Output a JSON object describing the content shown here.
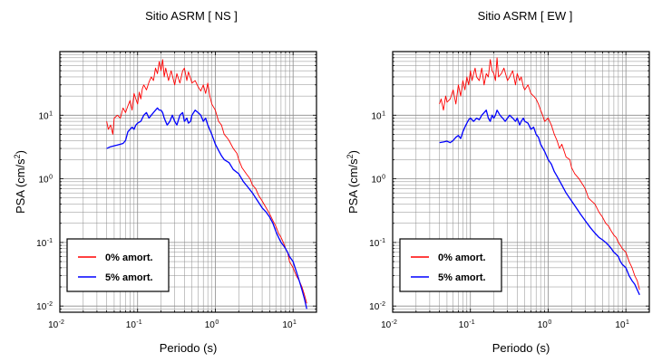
{
  "chart_data": [
    {
      "type": "line",
      "title": "Sitio ASRM [ NS ]",
      "xlabel": "Periodo (s)",
      "ylabel_main": "PSA (cm/s",
      "ylabel_sup": "2",
      "ylabel_close": ")",
      "xscale": "log",
      "yscale": "log",
      "xlim": [
        0.01,
        20
      ],
      "ylim": [
        0.008,
        100
      ],
      "grid": true,
      "legend": "bottom-left",
      "xticks": [
        {
          "base": "10",
          "exp": "-2"
        },
        {
          "base": "10",
          "exp": "-1"
        },
        {
          "base": "10",
          "exp": "0"
        },
        {
          "base": "10",
          "exp": "1"
        }
      ],
      "yticks": [
        {
          "base": "10",
          "exp": "-2"
        },
        {
          "base": "10",
          "exp": "-1"
        },
        {
          "base": "10",
          "exp": "0"
        },
        {
          "base": "10",
          "exp": "1"
        }
      ],
      "series": [
        {
          "name": "0% amort.",
          "color": "#ff0000",
          "x": [
            0.04,
            0.042,
            0.045,
            0.048,
            0.05,
            0.055,
            0.06,
            0.065,
            0.07,
            0.075,
            0.08,
            0.085,
            0.09,
            0.095,
            0.1,
            0.105,
            0.11,
            0.115,
            0.12,
            0.13,
            0.14,
            0.15,
            0.16,
            0.17,
            0.18,
            0.19,
            0.2,
            0.21,
            0.22,
            0.23,
            0.25,
            0.27,
            0.3,
            0.32,
            0.35,
            0.38,
            0.4,
            0.43,
            0.45,
            0.48,
            0.5,
            0.55,
            0.6,
            0.65,
            0.7,
            0.75,
            0.8,
            0.85,
            0.9,
            1,
            1.1,
            1.2,
            1.3,
            1.4,
            1.5,
            1.7,
            1.9,
            2,
            2.2,
            2.5,
            2.8,
            3,
            3.3,
            3.6,
            4,
            4.5,
            5,
            5.5,
            6,
            6.5,
            7,
            7.5,
            8,
            8.5,
            9,
            10,
            11,
            12,
            13,
            14,
            15
          ],
          "y": [
            8,
            6,
            7,
            5,
            9,
            10,
            9,
            13,
            11,
            14,
            17,
            12,
            22,
            18,
            15,
            23,
            18,
            26,
            30,
            25,
            33,
            40,
            35,
            55,
            45,
            70,
            50,
            75,
            40,
            55,
            35,
            50,
            30,
            45,
            32,
            50,
            55,
            35,
            48,
            38,
            32,
            35,
            28,
            24,
            30,
            22,
            32,
            20,
            15,
            12,
            8,
            7,
            5,
            4.5,
            4,
            3,
            2.5,
            2,
            1.5,
            1.2,
            1,
            0.8,
            0.7,
            0.55,
            0.45,
            0.35,
            0.28,
            0.22,
            0.18,
            0.14,
            0.12,
            0.1,
            0.08,
            0.07,
            0.05,
            0.04,
            0.03,
            0.025,
            0.02,
            0.015,
            0.011
          ]
        },
        {
          "name": "5% amort.",
          "color": "#0000ff",
          "x": [
            0.04,
            0.045,
            0.05,
            0.055,
            0.06,
            0.065,
            0.07,
            0.075,
            0.08,
            0.085,
            0.09,
            0.095,
            0.1,
            0.11,
            0.12,
            0.13,
            0.14,
            0.15,
            0.16,
            0.17,
            0.18,
            0.19,
            0.2,
            0.21,
            0.22,
            0.24,
            0.26,
            0.28,
            0.3,
            0.32,
            0.35,
            0.38,
            0.4,
            0.43,
            0.45,
            0.48,
            0.5,
            0.55,
            0.6,
            0.65,
            0.7,
            0.75,
            0.8,
            0.9,
            1,
            1.1,
            1.2,
            1.3,
            1.5,
            1.7,
            2,
            2.3,
            2.6,
            3,
            3.5,
            4,
            4.5,
            5,
            5.5,
            6,
            6.5,
            7,
            7.5,
            8,
            8.5,
            9,
            10,
            11,
            12,
            13,
            14,
            15
          ],
          "y": [
            3,
            3.2,
            3.3,
            3.4,
            3.5,
            3.6,
            4,
            5.5,
            6,
            6.5,
            6,
            7,
            7.5,
            8,
            10,
            11,
            9,
            10,
            11,
            12,
            13,
            12,
            12,
            11,
            9,
            7,
            8,
            10,
            8,
            7,
            10,
            11,
            8,
            9,
            7.5,
            8,
            10,
            12,
            11,
            10,
            8,
            9,
            7,
            5,
            3.5,
            2.8,
            2.3,
            2,
            1.8,
            1.4,
            1.2,
            0.9,
            0.75,
            0.6,
            0.45,
            0.35,
            0.3,
            0.25,
            0.2,
            0.15,
            0.12,
            0.1,
            0.09,
            0.08,
            0.07,
            0.06,
            0.05,
            0.035,
            0.025,
            0.018,
            0.013,
            0.009
          ]
        }
      ]
    },
    {
      "type": "line",
      "title": "Sitio ASRM [ EW ]",
      "xlabel": "Periodo (s)",
      "ylabel_main": "PSA (cm/s",
      "ylabel_sup": "2",
      "ylabel_close": ")",
      "xscale": "log",
      "yscale": "log",
      "xlim": [
        0.01,
        20
      ],
      "ylim": [
        0.008,
        100
      ],
      "grid": true,
      "legend": "bottom-left",
      "xticks": [
        {
          "base": "10",
          "exp": "-2"
        },
        {
          "base": "10",
          "exp": "-1"
        },
        {
          "base": "10",
          "exp": "0"
        },
        {
          "base": "10",
          "exp": "1"
        }
      ],
      "yticks": [
        {
          "base": "10",
          "exp": "-2"
        },
        {
          "base": "10",
          "exp": "-1"
        },
        {
          "base": "10",
          "exp": "0"
        },
        {
          "base": "10",
          "exp": "1"
        }
      ],
      "series": [
        {
          "name": "0% amort.",
          "color": "#ff0000",
          "x": [
            0.04,
            0.042,
            0.045,
            0.048,
            0.05,
            0.055,
            0.06,
            0.065,
            0.07,
            0.075,
            0.08,
            0.085,
            0.09,
            0.095,
            0.1,
            0.105,
            0.11,
            0.115,
            0.12,
            0.13,
            0.14,
            0.15,
            0.16,
            0.17,
            0.18,
            0.19,
            0.2,
            0.21,
            0.22,
            0.23,
            0.25,
            0.27,
            0.3,
            0.32,
            0.35,
            0.38,
            0.4,
            0.43,
            0.45,
            0.48,
            0.5,
            0.55,
            0.6,
            0.65,
            0.7,
            0.75,
            0.8,
            0.85,
            0.9,
            1,
            1.1,
            1.2,
            1.3,
            1.4,
            1.5,
            1.7,
            1.9,
            2,
            2.2,
            2.5,
            2.8,
            3,
            3.3,
            3.6,
            4,
            4.5,
            5,
            5.5,
            6,
            6.5,
            7,
            7.5,
            8,
            8.5,
            9,
            10,
            11,
            12,
            13,
            14,
            15
          ],
          "y": [
            15,
            18,
            12,
            20,
            16,
            18,
            25,
            15,
            30,
            20,
            35,
            25,
            40,
            30,
            50,
            35,
            45,
            55,
            40,
            35,
            55,
            30,
            45,
            40,
            75,
            50,
            45,
            35,
            80,
            40,
            45,
            55,
            35,
            40,
            50,
            30,
            45,
            35,
            40,
            28,
            25,
            30,
            22,
            20,
            18,
            15,
            12,
            10,
            8,
            9,
            7,
            5,
            4,
            3,
            3.5,
            2.2,
            2,
            1.5,
            1.2,
            1,
            0.8,
            0.7,
            0.5,
            0.45,
            0.4,
            0.3,
            0.25,
            0.2,
            0.18,
            0.15,
            0.13,
            0.12,
            0.1,
            0.09,
            0.08,
            0.07,
            0.05,
            0.04,
            0.03,
            0.025,
            0.018
          ]
        },
        {
          "name": "5% amort.",
          "color": "#0000ff",
          "x": [
            0.04,
            0.045,
            0.05,
            0.055,
            0.06,
            0.065,
            0.07,
            0.075,
            0.08,
            0.085,
            0.09,
            0.095,
            0.1,
            0.11,
            0.12,
            0.13,
            0.14,
            0.15,
            0.16,
            0.17,
            0.18,
            0.19,
            0.2,
            0.21,
            0.22,
            0.24,
            0.26,
            0.28,
            0.3,
            0.32,
            0.35,
            0.38,
            0.4,
            0.43,
            0.45,
            0.48,
            0.5,
            0.55,
            0.6,
            0.65,
            0.7,
            0.75,
            0.8,
            0.9,
            1,
            1.1,
            1.2,
            1.3,
            1.5,
            1.7,
            2,
            2.3,
            2.6,
            3,
            3.5,
            4,
            4.5,
            5,
            5.5,
            6,
            6.5,
            7,
            7.5,
            8,
            8.5,
            9,
            10,
            11,
            12,
            13,
            14,
            15
          ],
          "y": [
            3.7,
            3.8,
            3.9,
            3.7,
            4,
            4.5,
            4.8,
            4.3,
            5.5,
            6.5,
            7.5,
            8.5,
            9,
            8,
            9,
            8.5,
            10,
            11,
            12,
            9,
            8,
            10,
            9,
            10,
            12,
            10,
            9,
            8,
            9,
            10,
            9,
            8,
            9,
            7,
            8,
            9,
            8,
            7.5,
            6,
            6.5,
            5,
            4.5,
            3.5,
            2.7,
            2,
            1.7,
            1.3,
            1.1,
            0.8,
            0.6,
            0.45,
            0.35,
            0.28,
            0.22,
            0.17,
            0.14,
            0.12,
            0.11,
            0.1,
            0.09,
            0.08,
            0.07,
            0.065,
            0.06,
            0.05,
            0.045,
            0.04,
            0.03,
            0.025,
            0.022,
            0.018,
            0.015
          ]
        }
      ]
    }
  ]
}
